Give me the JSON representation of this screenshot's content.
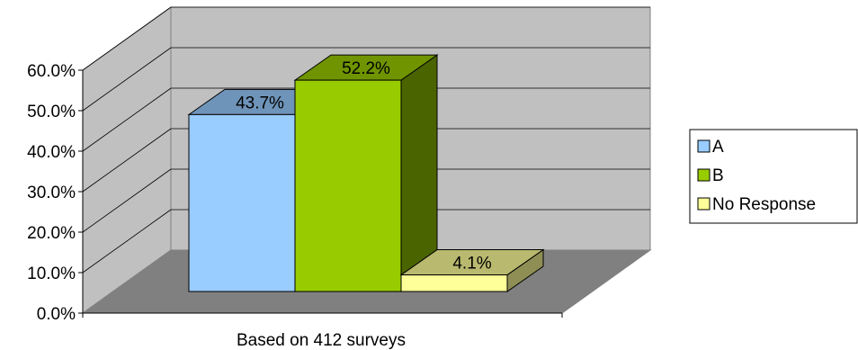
{
  "chart_data": {
    "type": "bar",
    "title": "",
    "xlabel": "Based on 412 surveys",
    "ylabel": "",
    "ylim": [
      0,
      60
    ],
    "y_ticks": [
      "0.0%",
      "10.0%",
      "20.0%",
      "30.0%",
      "40.0%",
      "50.0%",
      "60.0%"
    ],
    "y_tick_values": [
      0,
      10,
      20,
      30,
      40,
      50,
      60
    ],
    "categories": [
      "Based on 412 surveys"
    ],
    "series": [
      {
        "name": "A",
        "values": [
          43.7
        ],
        "label": "43.7%",
        "color": "#99ccff",
        "top_color": "#6f94b9",
        "side_color": "#557290"
      },
      {
        "name": "B",
        "values": [
          52.2
        ],
        "label": "52.2%",
        "color": "#99cc00",
        "top_color": "#6f9400",
        "side_color": "#4a6400"
      },
      {
        "name": "No Response",
        "values": [
          4.1
        ],
        "label": "4.1%",
        "color": "#ffff99",
        "top_color": "#b9b96f",
        "side_color": "#8f8f55"
      }
    ],
    "grid": true,
    "legend_position": "right",
    "style": "3d-clustered-column"
  }
}
